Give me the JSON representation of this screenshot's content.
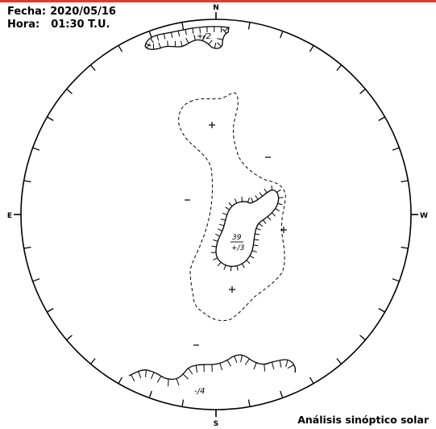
{
  "header": {
    "date_label": "Fecha:",
    "date_value": "2020/05/16",
    "time_label": "Hora:",
    "time_value": "01:30 T.U."
  },
  "compass": {
    "north": "N",
    "south": "S",
    "east": "E",
    "west": "W"
  },
  "annotations": {
    "north_region": "+/2",
    "center_top": "39",
    "center_bottom": "+/3",
    "south_region": "-/4"
  },
  "footer": {
    "title": "Análisis sinóptico solar"
  }
}
